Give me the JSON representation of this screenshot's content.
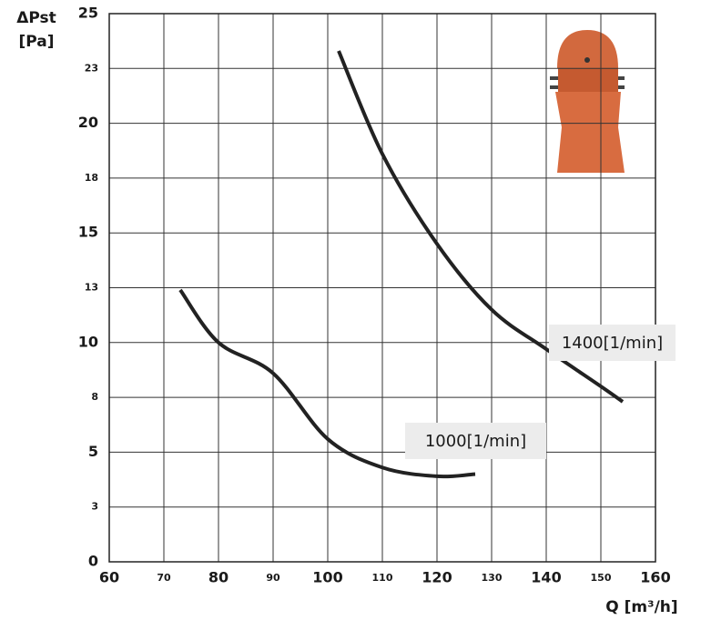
{
  "chart_data": {
    "type": "line",
    "y_label_lines": [
      "ΔPst",
      "[Pa]"
    ],
    "x_label": "Q [m³/h]",
    "xlim": [
      60,
      160
    ],
    "xticks": [
      60,
      70,
      80,
      90,
      100,
      110,
      120,
      130,
      140,
      150,
      160
    ],
    "ylim": [
      0,
      25
    ],
    "yticks": [
      0,
      {
        "value": 2.5,
        "label": "3"
      },
      5,
      {
        "value": 7.5,
        "label": "8"
      },
      10,
      {
        "value": 12.5,
        "label": "13"
      },
      15,
      {
        "value": 17.5,
        "label": "18"
      },
      20,
      {
        "value": 22.5,
        "label": "23"
      },
      25
    ],
    "grid": true,
    "series": [
      {
        "name": "1000[1/min]",
        "color": "#222222",
        "x": [
          73,
          80,
          90,
          100,
          110,
          120,
          127
        ],
        "values": [
          12.4,
          10.0,
          8.6,
          5.6,
          4.3,
          3.9,
          4.0
        ]
      },
      {
        "name": "1400[1/min]",
        "color": "#222222",
        "x": [
          102,
          110,
          120,
          130,
          140,
          150,
          154
        ],
        "values": [
          23.3,
          18.6,
          14.5,
          11.5,
          9.7,
          8.0,
          7.3
        ]
      }
    ]
  }
}
